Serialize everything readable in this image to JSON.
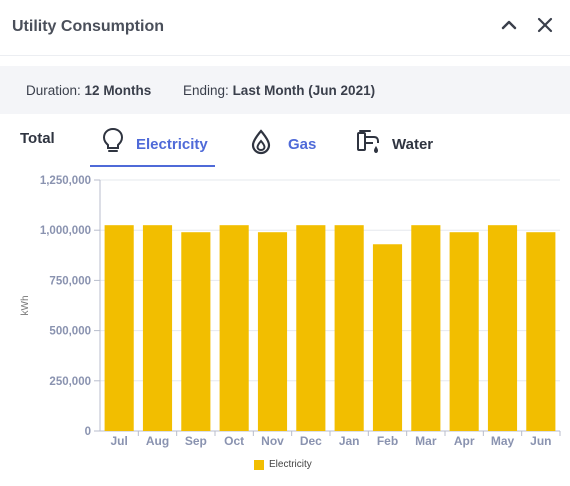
{
  "header": {
    "title": "Utility Consumption"
  },
  "filters": {
    "duration_label": "Duration:",
    "duration_value": "12 Months",
    "ending_label": "Ending:",
    "ending_value": "Last Month (Jun 2021)"
  },
  "tabs": [
    {
      "label": "Total",
      "icon": "none",
      "active": false
    },
    {
      "label": "Electricity",
      "icon": "lightbulb-icon",
      "active": true
    },
    {
      "label": "Gas",
      "icon": "flame-drop-icon",
      "active": false
    },
    {
      "label": "Water",
      "icon": "faucet-icon",
      "active": false
    }
  ],
  "colors": {
    "accent": "#4f6ad8",
    "bar": "#f2be00",
    "axis_text": "#8a93b0"
  },
  "chart_data": {
    "type": "bar",
    "categories": [
      "Jul",
      "Aug",
      "Sep",
      "Oct",
      "Nov",
      "Dec",
      "Jan",
      "Feb",
      "Mar",
      "Apr",
      "May",
      "Jun"
    ],
    "series": [
      {
        "name": "Electricity",
        "values": [
          1025000,
          1025000,
          990000,
          1025000,
          990000,
          1025000,
          1025000,
          930000,
          1025000,
          990000,
          1025000,
          990000
        ]
      }
    ],
    "ylabel": "kWh",
    "xlabel": "",
    "ylim": [
      0,
      1250000
    ],
    "yticks": [
      0,
      250000,
      500000,
      750000,
      1000000,
      1250000
    ],
    "ytick_labels": [
      "0",
      "250,000",
      "500,000",
      "750,000",
      "1,000,000",
      "1,250,000"
    ],
    "grid": "horizontal",
    "legend": "bottom-center"
  }
}
